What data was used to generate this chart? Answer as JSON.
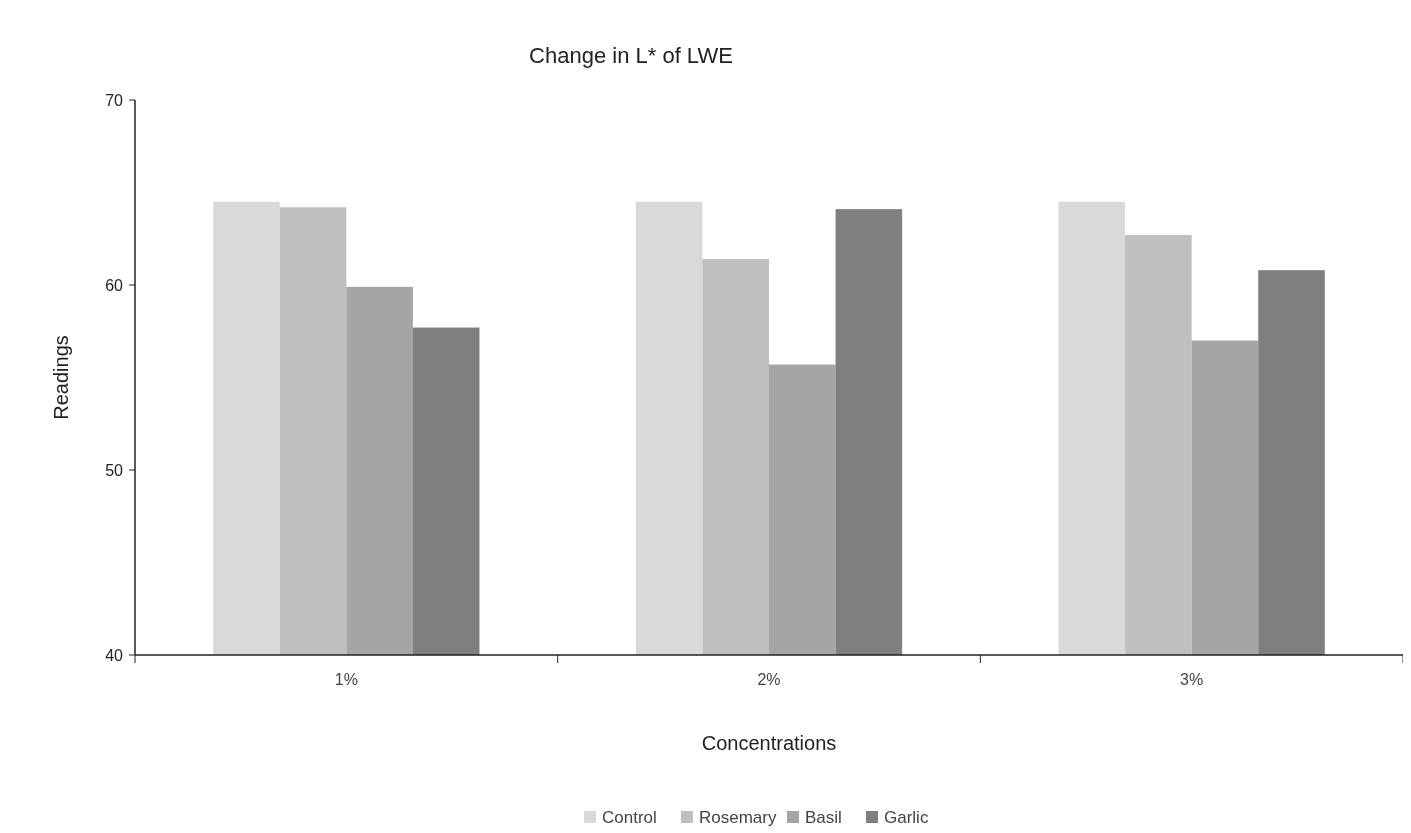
{
  "chart_data": {
    "type": "bar",
    "title": "Change in L* of LWE",
    "xlabel": "Concentrations",
    "ylabel": "Readings",
    "categories": [
      "1%",
      "2%",
      "3%"
    ],
    "series": [
      {
        "name": "Control",
        "color": "#d9d9d9",
        "values": [
          64.5,
          64.5,
          64.5
        ]
      },
      {
        "name": "Rosemary",
        "color": "#bfbfbf",
        "values": [
          64.2,
          61.4,
          62.7
        ]
      },
      {
        "name": "Basil",
        "color": "#a5a5a5",
        "values": [
          59.9,
          55.7,
          57.0
        ]
      },
      {
        "name": "Garlic",
        "color": "#7f7f7f",
        "values": [
          57.7,
          64.1,
          60.8
        ]
      }
    ],
    "ylim": [
      40,
      70
    ],
    "yticks": [
      40,
      50,
      60,
      70
    ],
    "grid": false,
    "legend": "bottom"
  }
}
